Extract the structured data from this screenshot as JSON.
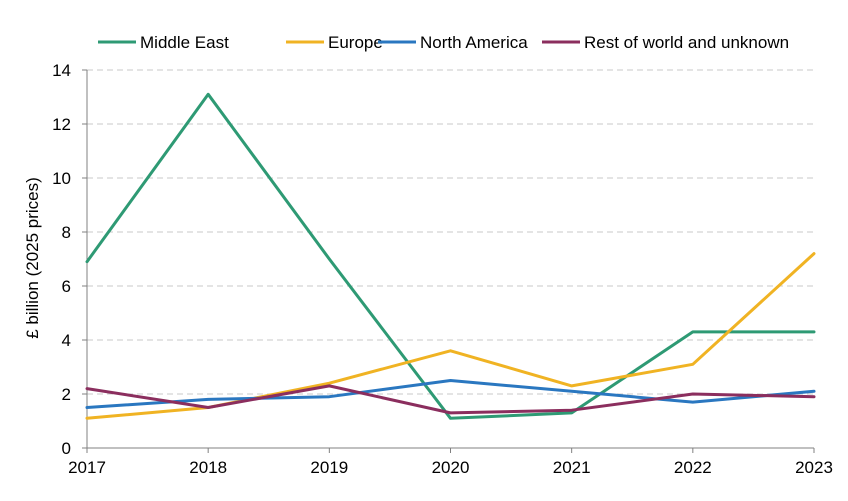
{
  "chart_data": {
    "type": "line",
    "title": "",
    "xlabel": "",
    "ylabel": "£ billion (2025 prices)",
    "x": [
      "2017",
      "2018",
      "2019",
      "2020",
      "2021",
      "2022",
      "2023"
    ],
    "ylim": [
      0,
      14
    ],
    "yticks": [
      0,
      2,
      4,
      6,
      8,
      10,
      12,
      14
    ],
    "grid": "horizontal dashed",
    "legend_position": "top",
    "series": [
      {
        "name": "Middle East",
        "color": "#2e9a74",
        "values": [
          6.9,
          13.1,
          7.0,
          1.1,
          1.3,
          4.3,
          4.3
        ]
      },
      {
        "name": "Europe",
        "color": "#f0b323",
        "values": [
          1.1,
          1.5,
          2.4,
          3.6,
          2.3,
          3.1,
          7.2
        ]
      },
      {
        "name": "North America",
        "color": "#2a77c0",
        "values": [
          1.5,
          1.8,
          1.9,
          2.5,
          2.1,
          1.7,
          2.1
        ]
      },
      {
        "name": "Rest of world and unknown",
        "color": "#8b2e5e",
        "values": [
          2.2,
          1.5,
          2.3,
          1.3,
          1.4,
          2.0,
          1.9
        ]
      }
    ]
  }
}
